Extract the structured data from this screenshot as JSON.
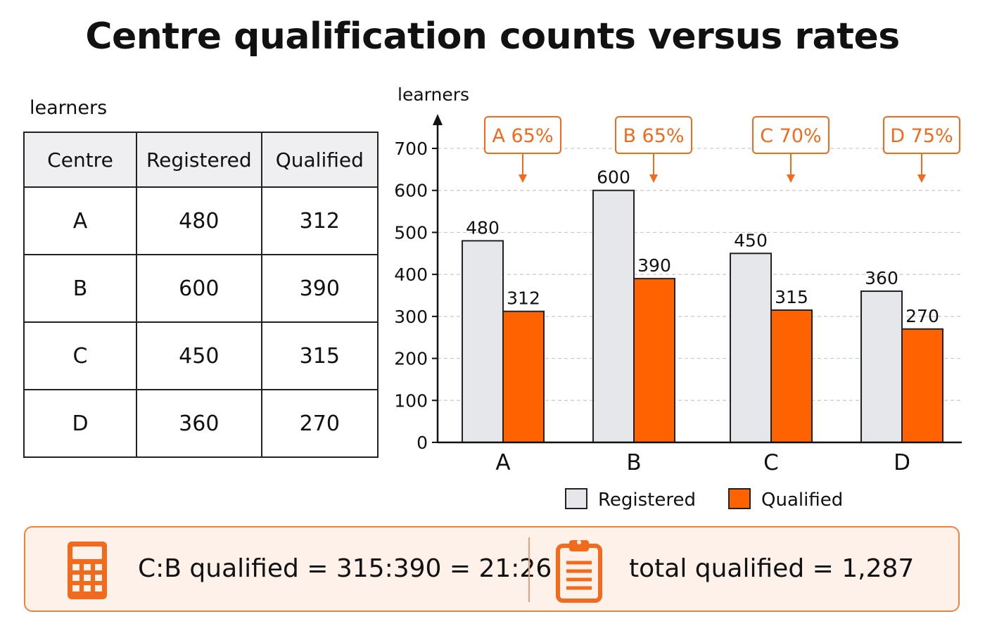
{
  "title": "Centre qualification counts versus rates",
  "table": {
    "unit_label": "learners",
    "headers": [
      "Centre",
      "Registered",
      "Qualified"
    ],
    "rows": [
      [
        "A",
        "480",
        "312"
      ],
      [
        "B",
        "600",
        "390"
      ],
      [
        "C",
        "450",
        "315"
      ],
      [
        "D",
        "360",
        "270"
      ]
    ]
  },
  "chart_data": {
    "type": "bar",
    "ylabel": "learners",
    "ylim": [
      0,
      700
    ],
    "yticks": [
      0,
      100,
      200,
      300,
      400,
      500,
      600,
      700
    ],
    "categories": [
      "A",
      "B",
      "C",
      "D"
    ],
    "series": [
      {
        "name": "Registered",
        "values": [
          480,
          600,
          450,
          360
        ],
        "color": "#e6e7eb"
      },
      {
        "name": "Qualified",
        "values": [
          312,
          390,
          315,
          270
        ],
        "color": "#ff6200"
      }
    ],
    "annotations": [
      "A 65%",
      "B 65%",
      "C 70%",
      "D 75%"
    ],
    "legend": "bottom-center",
    "grid": "horizontal dashed",
    "accent_color": "#f26a1b"
  },
  "summary": {
    "ratio_text": "C:B qualified = 315:390 = 21:26",
    "total_text": "total qualified = 1,287",
    "icons": [
      "calculator-icon",
      "clipboard-icon"
    ]
  }
}
